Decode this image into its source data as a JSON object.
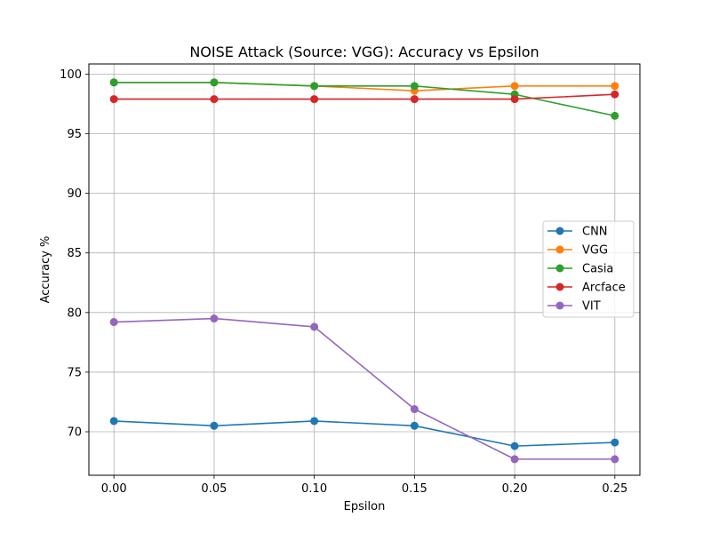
{
  "chart_data": {
    "type": "line",
    "title": "NOISE Attack (Source: VGG): Accuracy vs Epsilon",
    "xlabel": "Epsilon",
    "ylabel": "Accuracy %",
    "x": [
      0.0,
      0.05,
      0.1,
      0.15,
      0.2,
      0.25
    ],
    "x_tick_labels": [
      "0.00",
      "0.05",
      "0.10",
      "0.15",
      "0.20",
      "0.25"
    ],
    "y_ticks": [
      70,
      75,
      80,
      85,
      90,
      95,
      100
    ],
    "y_tick_labels": [
      "70",
      "75",
      "80",
      "85",
      "90",
      "95",
      "100"
    ],
    "xlim": [
      -0.0125,
      0.2625
    ],
    "ylim": [
      66.35,
      100.85
    ],
    "grid": true,
    "legend_position": "center-right",
    "series": [
      {
        "name": "CNN",
        "color": "#1f77b4",
        "values": [
          70.9,
          70.5,
          70.9,
          70.5,
          68.8,
          69.1
        ]
      },
      {
        "name": "VGG",
        "color": "#ff7f0e",
        "values": [
          99.3,
          99.3,
          99.0,
          98.6,
          99.0,
          99.0
        ]
      },
      {
        "name": "Casia",
        "color": "#2ca02c",
        "values": [
          99.3,
          99.3,
          99.0,
          99.0,
          98.3,
          96.5
        ]
      },
      {
        "name": "Arcface",
        "color": "#d62728",
        "values": [
          97.9,
          97.9,
          97.9,
          97.9,
          97.9,
          98.3
        ]
      },
      {
        "name": "VIT",
        "color": "#9467bd",
        "values": [
          79.2,
          79.5,
          78.8,
          71.9,
          67.7,
          67.7
        ]
      }
    ]
  }
}
